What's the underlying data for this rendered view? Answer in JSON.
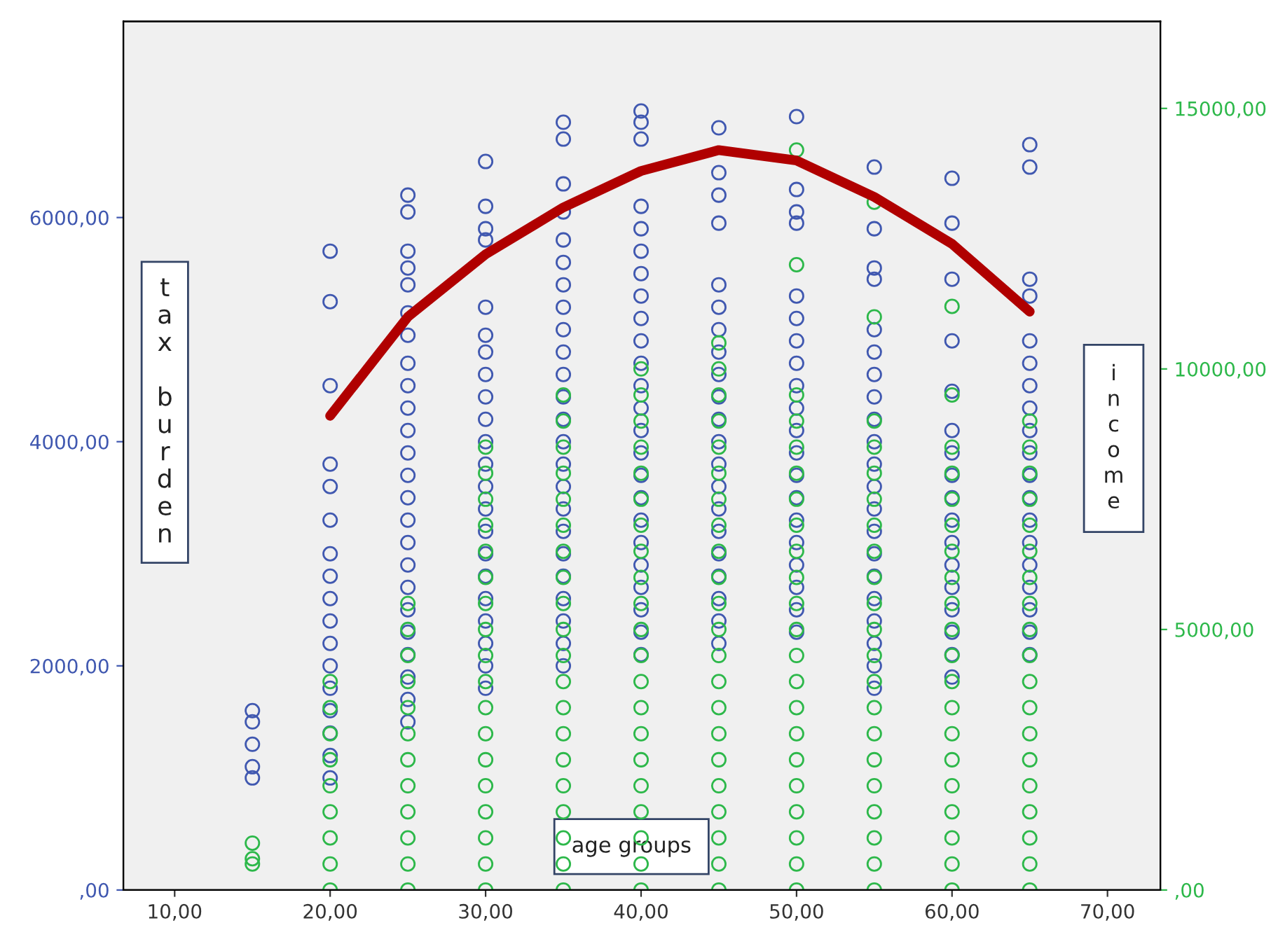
{
  "chart_data": {
    "type": "scatter",
    "xlabel": "age groups",
    "ylabel": "tax burden",
    "y2label": "income",
    "xlim": [
      6.7,
      73.4
    ],
    "xticks": [
      {
        "value": 10,
        "label": "10,00"
      },
      {
        "value": 20,
        "label": "20,00"
      },
      {
        "value": 30,
        "label": "30,00"
      },
      {
        "value": 40,
        "label": "40,00"
      },
      {
        "value": 50,
        "label": "50,00"
      },
      {
        "value": 60,
        "label": "60,00"
      },
      {
        "value": 70,
        "label": "70,00"
      }
    ],
    "ylim": [
      0,
      7750
    ],
    "yticks": [
      {
        "value": 0,
        "label": ",00"
      },
      {
        "value": 2000,
        "label": "2000,00"
      },
      {
        "value": 4000,
        "label": "4000,00"
      },
      {
        "value": 6000,
        "label": "6000,00"
      }
    ],
    "y2lim": [
      0,
      16670
    ],
    "y2ticks": [
      {
        "value": 0,
        "label": ",00"
      },
      {
        "value": 5000,
        "label": "5000,00"
      },
      {
        "value": 10000,
        "label": "10000,00"
      },
      {
        "value": 15000,
        "label": "15000,00"
      }
    ],
    "series": [
      {
        "color": "#4058b0",
        "x": [
          15,
          15,
          15,
          15,
          15,
          20,
          20,
          20,
          20,
          20,
          20,
          20,
          20,
          20,
          20,
          20,
          20,
          20,
          20,
          20,
          20,
          20,
          25,
          25,
          25,
          25,
          25,
          25,
          25,
          25,
          25,
          25,
          25,
          25,
          25,
          25,
          25,
          25,
          25,
          25,
          25,
          25,
          25,
          25,
          25,
          25,
          30,
          30,
          30,
          30,
          30,
          30,
          30,
          30,
          30,
          30,
          30,
          30,
          30,
          30,
          30,
          30,
          30,
          30,
          30,
          30,
          30,
          30,
          35,
          35,
          35,
          35,
          35,
          35,
          35,
          35,
          35,
          35,
          35,
          35,
          35,
          35,
          35,
          35,
          35,
          35,
          35,
          35,
          35,
          35,
          35,
          35,
          40,
          40,
          40,
          40,
          40,
          40,
          40,
          40,
          40,
          40,
          40,
          40,
          40,
          40,
          40,
          40,
          40,
          40,
          40,
          40,
          40,
          40,
          40,
          40,
          45,
          45,
          45,
          45,
          45,
          45,
          45,
          45,
          45,
          45,
          45,
          45,
          45,
          45,
          45,
          45,
          45,
          45,
          45,
          45,
          45,
          50,
          50,
          50,
          50,
          50,
          50,
          50,
          50,
          50,
          50,
          50,
          50,
          50,
          50,
          50,
          50,
          50,
          50,
          50,
          50,
          55,
          55,
          55,
          55,
          55,
          55,
          55,
          55,
          55,
          55,
          55,
          55,
          55,
          55,
          55,
          55,
          55,
          55,
          55,
          55,
          55,
          60,
          60,
          60,
          60,
          60,
          60,
          60,
          60,
          60,
          60,
          60,
          60,
          60,
          60,
          60,
          60,
          60,
          65,
          65,
          65,
          65,
          65,
          65,
          65,
          65,
          65,
          65,
          65,
          65,
          65,
          65,
          65,
          65,
          65,
          65,
          65
        ],
        "values": [
          1600,
          1500,
          1300,
          1100,
          1000,
          5700,
          5250,
          4500,
          3800,
          3600,
          3300,
          3000,
          2800,
          2600,
          2400,
          2200,
          2000,
          1800,
          1600,
          1400,
          1200,
          1000,
          6200,
          6050,
          5700,
          5550,
          5400,
          5150,
          4950,
          4700,
          4500,
          4300,
          4100,
          3900,
          3700,
          3500,
          3300,
          3100,
          2900,
          2700,
          2500,
          2300,
          2100,
          1900,
          1700,
          1500,
          6500,
          6100,
          5900,
          5800,
          5200,
          4950,
          4800,
          4600,
          4400,
          4200,
          4000,
          3800,
          3600,
          3400,
          3200,
          3000,
          2800,
          2600,
          2400,
          2200,
          2000,
          1800,
          6850,
          6700,
          6300,
          6050,
          5800,
          5600,
          5400,
          5200,
          5000,
          4800,
          4600,
          4400,
          4200,
          4000,
          3800,
          3600,
          3400,
          3200,
          3000,
          2800,
          2600,
          2400,
          2200,
          2000,
          6950,
          6850,
          6700,
          6100,
          5900,
          5700,
          5500,
          5300,
          5100,
          4900,
          4700,
          4500,
          4300,
          4100,
          3900,
          3700,
          3500,
          3300,
          3100,
          2900,
          2700,
          2500,
          2300,
          2100,
          6800,
          6400,
          6200,
          5950,
          5400,
          5200,
          5000,
          4800,
          4600,
          4400,
          4200,
          4000,
          3800,
          3600,
          3400,
          3200,
          3000,
          2800,
          2600,
          2400,
          2200,
          6900,
          6250,
          6050,
          5950,
          5300,
          5100,
          4900,
          4700,
          4500,
          4300,
          4100,
          3900,
          3700,
          3500,
          3300,
          3100,
          2900,
          2700,
          2500,
          2300,
          6450,
          5900,
          5550,
          5450,
          5000,
          4800,
          4600,
          4400,
          4200,
          4000,
          3800,
          3600,
          3400,
          3200,
          3000,
          2800,
          2600,
          2400,
          2200,
          2000,
          1800,
          6350,
          5950,
          5450,
          4900,
          4450,
          4100,
          3900,
          3700,
          3500,
          3300,
          3100,
          2900,
          2700,
          2500,
          2300,
          2100,
          1900,
          6650,
          6450,
          5450,
          5300,
          4900,
          4700,
          4500,
          4300,
          4100,
          3900,
          3700,
          3500,
          3300,
          3100,
          2900,
          2700,
          2500,
          2300,
          2100
        ]
      },
      {
        "color": "#2db84a",
        "axis": "y2",
        "x": [
          15,
          15,
          15,
          20,
          20,
          20,
          20,
          20,
          20,
          20,
          20,
          20,
          25,
          25,
          25,
          25,
          25,
          25,
          25,
          25,
          25,
          25,
          25,
          25,
          30,
          30,
          30,
          30,
          30,
          30,
          30,
          30,
          30,
          30,
          30,
          30,
          30,
          30,
          30,
          30,
          30,
          30,
          35,
          35,
          35,
          35,
          35,
          35,
          35,
          35,
          35,
          35,
          35,
          35,
          35,
          35,
          35,
          35,
          35,
          35,
          35,
          35,
          40,
          40,
          40,
          40,
          40,
          40,
          40,
          40,
          40,
          40,
          40,
          40,
          40,
          40,
          40,
          40,
          40,
          40,
          40,
          40,
          40,
          45,
          45,
          45,
          45,
          45,
          45,
          45,
          45,
          45,
          45,
          45,
          45,
          45,
          45,
          45,
          45,
          45,
          45,
          45,
          45,
          45,
          45,
          50,
          50,
          50,
          50,
          50,
          50,
          50,
          50,
          50,
          50,
          50,
          50,
          50,
          50,
          50,
          50,
          50,
          50,
          50,
          50,
          50,
          50,
          55,
          55,
          55,
          55,
          55,
          55,
          55,
          55,
          55,
          55,
          55,
          55,
          55,
          55,
          55,
          55,
          55,
          55,
          55,
          55,
          55,
          60,
          60,
          60,
          60,
          60,
          60,
          60,
          60,
          60,
          60,
          60,
          60,
          60,
          60,
          60,
          60,
          60,
          60,
          60,
          60,
          65,
          65,
          65,
          65,
          65,
          65,
          65,
          65,
          65,
          65,
          65,
          65,
          65,
          65,
          65,
          65,
          65,
          65,
          65
        ],
        "values": [
          900,
          600,
          500,
          0,
          500,
          1000,
          1500,
          2000,
          2500,
          3000,
          3500,
          4000,
          0,
          500,
          1000,
          1500,
          2000,
          2500,
          3000,
          3500,
          4000,
          4500,
          5000,
          5500,
          0,
          500,
          1000,
          1500,
          2000,
          2500,
          3000,
          3500,
          4000,
          4500,
          5000,
          5500,
          6000,
          6500,
          7000,
          7500,
          8000,
          8500,
          0,
          500,
          1000,
          1500,
          2000,
          2500,
          3000,
          3500,
          4000,
          4500,
          5000,
          5500,
          6000,
          6500,
          7000,
          7500,
          8000,
          8500,
          9000,
          9500,
          0,
          500,
          1000,
          1500,
          2000,
          2500,
          3000,
          3500,
          4000,
          4500,
          5000,
          5500,
          6000,
          6500,
          7000,
          7500,
          8000,
          8500,
          9000,
          9500,
          10000,
          0,
          500,
          1000,
          1500,
          2000,
          2500,
          3000,
          3500,
          4000,
          4500,
          5000,
          5500,
          6000,
          6500,
          7000,
          7500,
          8000,
          8500,
          9000,
          9500,
          10000,
          10500,
          0,
          500,
          1000,
          1500,
          2000,
          2500,
          3000,
          3500,
          4000,
          4500,
          5000,
          5500,
          6000,
          6500,
          7000,
          7500,
          8000,
          8500,
          9000,
          9500,
          12000,
          14200,
          0,
          500,
          1000,
          1500,
          2000,
          2500,
          3000,
          3500,
          4000,
          4500,
          5000,
          5500,
          6000,
          6500,
          7000,
          7500,
          8000,
          8500,
          9000,
          11000,
          13200,
          0,
          500,
          1000,
          1500,
          2000,
          2500,
          3000,
          3500,
          4000,
          4500,
          5000,
          5500,
          6000,
          6500,
          7000,
          7500,
          8000,
          8500,
          9500,
          11200,
          0,
          500,
          1000,
          1500,
          2000,
          2500,
          3000,
          3500,
          4000,
          4500,
          5000,
          5500,
          6000,
          6500,
          7000,
          7500,
          8000,
          8500,
          9000
        ]
      },
      {
        "type": "line",
        "color": "#b00000",
        "axis": "y2",
        "x": [
          20,
          25,
          30,
          35,
          40,
          45,
          50,
          55,
          60,
          65
        ],
        "values": [
          9100,
          11000,
          12200,
          13100,
          13800,
          14200,
          14000,
          13300,
          12400,
          11100
        ]
      }
    ]
  }
}
